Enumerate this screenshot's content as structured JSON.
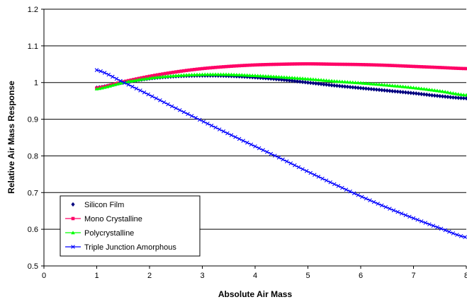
{
  "chart_data": {
    "type": "line",
    "title": "",
    "xlabel": "Absolute Air Mass",
    "ylabel": "Relative Air Mass Response",
    "xlim": [
      0,
      8
    ],
    "ylim": [
      0.5,
      1.2
    ],
    "xticks": [
      "0",
      "1",
      "2",
      "3",
      "4",
      "5",
      "6",
      "7",
      "8"
    ],
    "yticks": [
      "0.5",
      "0.6",
      "0.7",
      "0.8",
      "0.9",
      "1",
      "1.1",
      "1.2"
    ],
    "grid": "horizontal",
    "legend_position": "bottom-left",
    "x": [
      1,
      1.5,
      2,
      2.5,
      3,
      3.5,
      4,
      4.5,
      5,
      5.5,
      6,
      6.5,
      7,
      7.5,
      8
    ],
    "series": [
      {
        "name": "Silicon Film",
        "color": "#00007f",
        "marker": "diamond",
        "values": [
          0.986,
          1.0,
          1.011,
          1.017,
          1.019,
          1.018,
          1.014,
          1.008,
          1.0,
          0.992,
          0.985,
          0.978,
          0.971,
          0.963,
          0.957
        ]
      },
      {
        "name": "Mono Crystalline",
        "color": "#ff0066",
        "marker": "square",
        "values": [
          0.985,
          1.002,
          1.017,
          1.029,
          1.038,
          1.044,
          1.048,
          1.05,
          1.051,
          1.05,
          1.049,
          1.047,
          1.044,
          1.041,
          1.038
        ]
      },
      {
        "name": "Polycrystalline",
        "color": "#00ff00",
        "marker": "triangle",
        "values": [
          0.983,
          1.0,
          1.012,
          1.019,
          1.022,
          1.022,
          1.019,
          1.015,
          1.01,
          1.004,
          0.999,
          0.993,
          0.986,
          0.977,
          0.966
        ]
      },
      {
        "name": "Triple Junction Amorphous",
        "color": "#0000ff",
        "marker": "x",
        "values": [
          1.034,
          1.001,
          0.966,
          0.93,
          0.895,
          0.86,
          0.826,
          0.792,
          0.757,
          0.723,
          0.69,
          0.659,
          0.63,
          0.603,
          0.578
        ]
      }
    ]
  }
}
